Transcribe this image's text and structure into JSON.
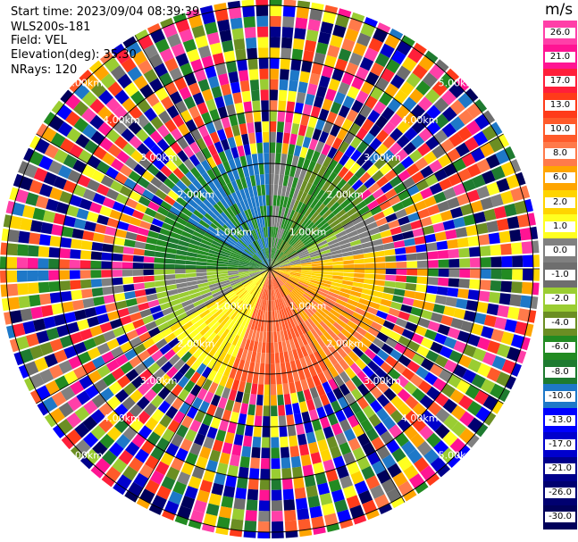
{
  "header": {
    "start_time": "Start time: 2023/09/04 08:39:39",
    "instrument": "WLS200s-181",
    "field": "Field: VEL",
    "elevation": "Elevation(deg): 35.30",
    "nrays": "NRays: 120"
  },
  "colorbar": {
    "unit": "m/s",
    "bins": [
      {
        "label": "26.0",
        "color": "#ff3fa8"
      },
      {
        "label": "21.0",
        "color": "#ff1493"
      },
      {
        "label": "17.0",
        "color": "#ff1f3a"
      },
      {
        "label": "13.0",
        "color": "#ff3b1a"
      },
      {
        "label": "10.0",
        "color": "#ff5a2a"
      },
      {
        "label": "8.0",
        "color": "#ff7a4a"
      },
      {
        "label": "6.0",
        "color": "#ffa500"
      },
      {
        "label": "2.0",
        "color": "#ffd400"
      },
      {
        "label": "1.0",
        "color": "#ffff20"
      },
      {
        "label": "0.0",
        "color": "#808080"
      },
      {
        "label": "-1.0",
        "color": "#6e6e6e"
      },
      {
        "label": "-2.0",
        "color": "#9acd32"
      },
      {
        "label": "-4.0",
        "color": "#6b8e23"
      },
      {
        "label": "-6.0",
        "color": "#228b22"
      },
      {
        "label": "-8.0",
        "color": "#1e7b30"
      },
      {
        "label": "-10.0",
        "color": "#1e78c8"
      },
      {
        "label": "-13.0",
        "color": "#0000ff"
      },
      {
        "label": "-17.0",
        "color": "#0000cd"
      },
      {
        "label": "-21.0",
        "color": "#00008b"
      },
      {
        "label": "-26.0",
        "color": "#000070"
      },
      {
        "label": "-30.0",
        "color": "#00005a"
      }
    ]
  },
  "range_rings": [
    {
      "label": "1.00km",
      "km": 1
    },
    {
      "label": "2.00km",
      "km": 2
    },
    {
      "label": "3.00km",
      "km": 3
    },
    {
      "label": "4.00km",
      "km": 4
    },
    {
      "label": "5.00km",
      "km": 5
    }
  ]
}
